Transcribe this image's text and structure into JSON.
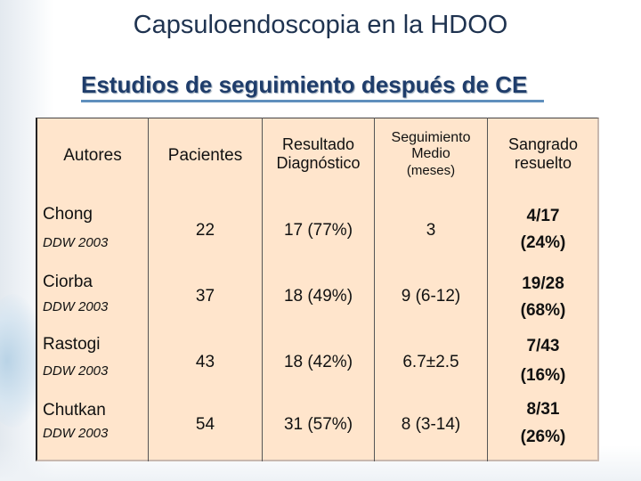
{
  "slide": {
    "title": "Capsuloendoscopia en la HDOO",
    "subtitle": "Estudios de seguimiento después de CE"
  },
  "table": {
    "headers": {
      "autores": "Autores",
      "pacientes": "Pacientes",
      "resultado_1": "Resultado",
      "resultado_2": "Diagnóstico",
      "seguimiento_1": "Seguimiento",
      "seguimiento_2": "Medio",
      "seguimiento_3": "(meses)",
      "sangrado_1": "Sangrado",
      "sangrado_2": "resuelto"
    },
    "rows": [
      {
        "author": "Chong",
        "source": "DDW 2003",
        "pacientes": "22",
        "resultado": "17 (77%)",
        "seguimiento": "3",
        "sangrado_1": "4/17",
        "sangrado_2": "(24%)"
      },
      {
        "author": "Ciorba",
        "source": "DDW 2003",
        "pacientes": "37",
        "resultado": "18 (49%)",
        "seguimiento": "9 (6-12)",
        "sangrado_1": "19/28",
        "sangrado_2": "(68%)"
      },
      {
        "author": "Rastogi",
        "source": "DDW 2003",
        "pacientes": "43",
        "resultado": "18 (42%)",
        "seguimiento": "6.7±2.5",
        "sangrado_1": "7/43",
        "sangrado_2": "(16%)"
      },
      {
        "author": "Chutkan",
        "source": "DDW 2003",
        "pacientes": "54",
        "resultado": "31 (57%)",
        "seguimiento": "8 (3-14)",
        "sangrado_1": "8/31",
        "sangrado_2": "(26%)"
      }
    ]
  }
}
